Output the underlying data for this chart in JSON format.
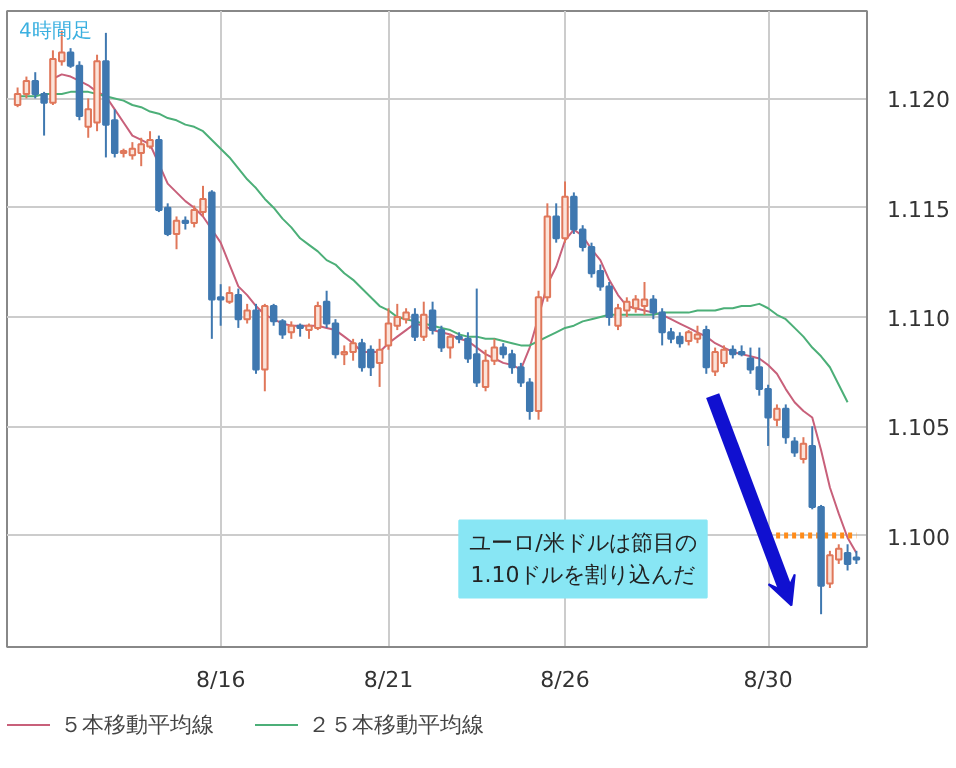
{
  "chart_data": {
    "type": "candlestick",
    "title": "4時間足",
    "annotations": [
      "ユーロ/米ドルは節目の\n1.10ドルを割り込んだ"
    ],
    "categories": [
      null,
      null,
      null,
      null,
      null,
      null,
      null,
      null,
      null,
      null,
      null,
      null,
      null,
      null,
      null,
      null,
      null,
      null,
      null,
      null,
      null,
      null,
      null,
      "8/16",
      null,
      null,
      null,
      null,
      null,
      null,
      null,
      null,
      null,
      null,
      null,
      null,
      null,
      null,
      null,
      null,
      null,
      null,
      "8/21",
      null,
      null,
      null,
      null,
      null,
      null,
      null,
      null,
      null,
      null,
      null,
      null,
      null,
      null,
      null,
      null,
      null,
      null,
      null,
      "8/26",
      null,
      null,
      null,
      null,
      null,
      null,
      null,
      null,
      null,
      null,
      null,
      null,
      null,
      null,
      null,
      null,
      null,
      null,
      null,
      null,
      null,
      null,
      "8/30",
      null,
      null,
      null,
      null,
      null,
      null,
      null,
      null,
      null,
      null
    ],
    "ohlc": [
      [
        1.1197,
        1.1205,
        1.1196,
        1.1202
      ],
      [
        1.1202,
        1.121,
        1.12,
        1.1208
      ],
      [
        1.1208,
        1.1212,
        1.12,
        1.1202
      ],
      [
        1.1202,
        1.1203,
        1.1183,
        1.1198
      ],
      [
        1.1198,
        1.1222,
        1.1197,
        1.1218
      ],
      [
        1.1217,
        1.1231,
        1.1215,
        1.1221
      ],
      [
        1.1221,
        1.1223,
        1.1214,
        1.1215
      ],
      [
        1.1215,
        1.1217,
        1.119,
        1.1192
      ],
      [
        1.1187,
        1.12,
        1.1182,
        1.1195
      ],
      [
        1.1189,
        1.122,
        1.1185,
        1.1217
      ],
      [
        1.1217,
        1.123,
        1.1173,
        1.1188
      ],
      [
        1.119,
        1.1195,
        1.1173,
        1.1175
      ],
      [
        1.1175,
        1.1177,
        1.1173,
        1.1176
      ],
      [
        1.1174,
        1.118,
        1.1172,
        1.1177
      ],
      [
        1.1175,
        1.1182,
        1.1169,
        1.1179
      ],
      [
        1.1178,
        1.1185,
        1.1177,
        1.1181
      ],
      [
        1.1181,
        1.1183,
        1.1148,
        1.1149
      ],
      [
        1.115,
        1.1152,
        1.1137,
        1.1138
      ],
      [
        1.1138,
        1.1146,
        1.1131,
        1.1144
      ],
      [
        1.1144,
        1.1146,
        1.114,
        1.1143
      ],
      [
        1.1143,
        1.1151,
        1.1141,
        1.1149
      ],
      [
        1.1148,
        1.116,
        1.1146,
        1.1154
      ],
      [
        1.1157,
        1.1158,
        1.109,
        1.1108
      ],
      [
        1.1109,
        1.1115,
        1.1096,
        1.1108
      ],
      [
        1.1107,
        1.1114,
        1.1106,
        1.1111
      ],
      [
        1.111,
        1.1113,
        1.1095,
        1.1099
      ],
      [
        1.1099,
        1.1106,
        1.1097,
        1.1103
      ],
      [
        1.1103,
        1.1106,
        1.1074,
        1.1076
      ],
      [
        1.1076,
        1.1106,
        1.1066,
        1.1105
      ],
      [
        1.1105,
        1.1106,
        1.1096,
        1.1098
      ],
      [
        1.1098,
        1.1099,
        1.109,
        1.1092
      ],
      [
        1.1093,
        1.1098,
        1.109,
        1.1096
      ],
      [
        1.1096,
        1.1097,
        1.1091,
        1.1095
      ],
      [
        1.1094,
        1.1097,
        1.109,
        1.1096
      ],
      [
        1.1095,
        1.1107,
        1.1094,
        1.1105
      ],
      [
        1.1107,
        1.1112,
        1.1095,
        1.1097
      ],
      [
        1.1097,
        1.1099,
        1.1081,
        1.1083
      ],
      [
        1.1083,
        1.1087,
        1.1078,
        1.1084
      ],
      [
        1.1084,
        1.109,
        1.108,
        1.1088
      ],
      [
        1.1088,
        1.109,
        1.1075,
        1.1077
      ],
      [
        1.1085,
        1.1087,
        1.1073,
        1.1077
      ],
      [
        1.1079,
        1.109,
        1.1068,
        1.1085
      ],
      [
        1.1087,
        1.1104,
        1.1085,
        1.1097
      ],
      [
        1.1096,
        1.1106,
        1.1094,
        1.11
      ],
      [
        1.1099,
        1.1104,
        1.1097,
        1.1102
      ],
      [
        1.1101,
        1.1104,
        1.1089,
        1.1091
      ],
      [
        1.1091,
        1.1107,
        1.1089,
        1.1101
      ],
      [
        1.1103,
        1.1107,
        1.1092,
        1.1094
      ],
      [
        1.1094,
        1.1096,
        1.1084,
        1.1086
      ],
      [
        1.1086,
        1.1092,
        1.1081,
        1.1091
      ],
      [
        1.1091,
        1.1093,
        1.1088,
        1.109
      ],
      [
        1.109,
        1.1093,
        1.1079,
        1.1081
      ],
      [
        1.1083,
        1.1113,
        1.1068,
        1.107
      ],
      [
        1.1068,
        1.1085,
        1.1066,
        1.108
      ],
      [
        1.108,
        1.109,
        1.1078,
        1.1086
      ],
      [
        1.1086,
        1.1088,
        1.1081,
        1.1083
      ],
      [
        1.1083,
        1.1085,
        1.1074,
        1.1077
      ],
      [
        1.1077,
        1.1079,
        1.1068,
        1.107
      ],
      [
        1.107,
        1.1072,
        1.1053,
        1.1057
      ],
      [
        1.1057,
        1.1112,
        1.1053,
        1.1109
      ],
      [
        1.1109,
        1.1152,
        1.1107,
        1.1146
      ],
      [
        1.1146,
        1.1152,
        1.1134,
        1.1136
      ],
      [
        1.1136,
        1.1162,
        1.1134,
        1.1155
      ],
      [
        1.1155,
        1.1157,
        1.1138,
        1.114
      ],
      [
        1.114,
        1.1142,
        1.113,
        1.1132
      ],
      [
        1.1132,
        1.1134,
        1.1118,
        1.112
      ],
      [
        1.1121,
        1.1124,
        1.1112,
        1.1114
      ],
      [
        1.1114,
        1.1116,
        1.1096,
        1.11
      ],
      [
        1.1096,
        1.1106,
        1.1094,
        1.1104
      ],
      [
        1.1103,
        1.1109,
        1.11,
        1.1107
      ],
      [
        1.1104,
        1.111,
        1.1102,
        1.1108
      ],
      [
        1.1105,
        1.1116,
        1.1101,
        1.1108
      ],
      [
        1.1108,
        1.111,
        1.1099,
        1.1102
      ],
      [
        1.1102,
        1.1104,
        1.1087,
        1.1093
      ],
      [
        1.1093,
        1.1095,
        1.1088,
        1.109
      ],
      [
        1.1091,
        1.1093,
        1.1086,
        1.1088
      ],
      [
        1.1089,
        1.1094,
        1.1087,
        1.1093
      ],
      [
        1.109,
        1.1096,
        1.1088,
        1.1092
      ],
      [
        1.1094,
        1.1096,
        1.1074,
        1.1077
      ],
      [
        1.1075,
        1.1086,
        1.1073,
        1.1084
      ],
      [
        1.1079,
        1.1087,
        1.1077,
        1.1085
      ],
      [
        1.1085,
        1.1087,
        1.1081,
        1.1083
      ],
      [
        1.1084,
        1.1087,
        1.1082,
        1.1083
      ],
      [
        1.1081,
        1.1086,
        1.1074,
        1.1076
      ],
      [
        1.1077,
        1.1086,
        1.1064,
        1.1067
      ],
      [
        1.1067,
        1.1069,
        1.1041,
        1.1054
      ],
      [
        1.1053,
        1.106,
        1.105,
        1.1058
      ],
      [
        1.1058,
        1.106,
        1.1042,
        1.1045
      ],
      [
        1.1043,
        1.1045,
        1.1036,
        1.1038
      ],
      [
        1.1035,
        1.1045,
        1.1033,
        1.1042
      ],
      [
        1.1041,
        1.105,
        1.1012,
        1.1013
      ],
      [
        1.1013,
        1.1014,
        1.0964,
        1.0977
      ],
      [
        1.0978,
        1.0993,
        1.0976,
        1.0991
      ],
      [
        1.0989,
        1.0996,
        1.0987,
        1.0994
      ],
      [
        1.0992,
        1.0996,
        1.0984,
        1.0987
      ],
      [
        1.099,
        1.0993,
        1.0987,
        1.0989
      ]
    ],
    "series": [
      {
        "name": "５本移動平均線",
        "type": "line",
        "color": "#c8607a",
        "values": [
          null,
          null,
          null,
          null,
          1.1209,
          1.1211,
          1.121,
          1.1208,
          1.1206,
          1.1203,
          1.1201,
          1.1195,
          1.1189,
          1.1183,
          1.1181,
          1.1179,
          1.117,
          1.1161,
          1.1157,
          1.1153,
          1.115,
          1.1146,
          1.114,
          1.1134,
          1.1124,
          1.1114,
          1.111,
          1.1105,
          1.1101,
          1.1099,
          1.1097,
          1.1096,
          1.1096,
          1.1096,
          1.1096,
          1.1095,
          1.1094,
          1.1091,
          1.1088,
          1.1084,
          1.1084,
          1.1084,
          1.1088,
          1.1091,
          1.1094,
          1.1097,
          1.1096,
          1.1094,
          1.1093,
          1.1092,
          1.109,
          1.1089,
          1.1086,
          1.1083,
          1.1081,
          1.1079,
          1.1078,
          1.1076,
          1.1086,
          1.11,
          1.1115,
          1.1123,
          1.1135,
          1.114,
          1.1137,
          1.1131,
          1.1126,
          1.1117,
          1.111,
          1.1105,
          1.1104,
          1.1103,
          1.1102,
          1.1101,
          1.1099,
          1.1097,
          1.1095,
          1.1093,
          1.1091,
          1.1088,
          1.1086,
          1.1084,
          1.1083,
          1.1082,
          1.1081,
          1.1078,
          1.1074,
          1.1067,
          1.1061,
          1.1057,
          1.1054,
          1.1039,
          1.1022,
          1.101,
          1.0999,
          1.0992
        ]
      },
      {
        "name": "２５本移動平均線",
        "type": "line",
        "color": "#4caf78",
        "values": [
          1.1201,
          1.1201,
          1.1201,
          1.1202,
          1.1202,
          1.1202,
          1.1203,
          1.1203,
          1.1203,
          1.1202,
          1.1201,
          1.12,
          1.1199,
          1.1197,
          1.1196,
          1.1194,
          1.1193,
          1.1191,
          1.119,
          1.1188,
          1.1187,
          1.1185,
          1.1181,
          1.1177,
          1.1173,
          1.1168,
          1.1163,
          1.1159,
          1.1154,
          1.115,
          1.1145,
          1.1141,
          1.1136,
          1.1133,
          1.113,
          1.1126,
          1.1124,
          1.112,
          1.1117,
          1.1113,
          1.1109,
          1.1105,
          1.1103,
          1.11,
          1.1099,
          1.1098,
          1.1097,
          1.1096,
          1.1095,
          1.1094,
          1.1092,
          1.1091,
          1.1091,
          1.109,
          1.109,
          1.1089,
          1.1088,
          1.1087,
          1.1087,
          1.1089,
          1.1091,
          1.1093,
          1.1095,
          1.1096,
          1.1098,
          1.1099,
          1.11,
          1.1101,
          1.1101,
          1.1101,
          1.1101,
          1.1101,
          1.1101,
          1.1102,
          1.1102,
          1.1102,
          1.1102,
          1.1103,
          1.1103,
          1.1103,
          1.1104,
          1.1104,
          1.1105,
          1.1105,
          1.1106,
          1.1104,
          1.1101,
          1.1099,
          1.1095,
          1.1091,
          1.1086,
          1.1082,
          1.1077,
          1.1069,
          1.1061,
          null
        ]
      },
      {
        "type": "line",
        "color": "#ff8c1a",
        "line_style": "dotted",
        "values": [
          null,
          null,
          null,
          null,
          null,
          null,
          null,
          null,
          null,
          null,
          null,
          null,
          null,
          null,
          null,
          null,
          null,
          null,
          null,
          null,
          null,
          null,
          null,
          null,
          null,
          null,
          null,
          null,
          null,
          null,
          null,
          null,
          null,
          null,
          null,
          null,
          null,
          null,
          null,
          null,
          null,
          null,
          null,
          null,
          null,
          null,
          null,
          null,
          null,
          null,
          null,
          null,
          null,
          null,
          null,
          null,
          null,
          null,
          null,
          null,
          null,
          null,
          null,
          null,
          null,
          null,
          null,
          null,
          null,
          null,
          null,
          null,
          null,
          null,
          null,
          null,
          null,
          null,
          null,
          null,
          null,
          null,
          null,
          null,
          null,
          1.1,
          1.1,
          1.1,
          1.1,
          1.1,
          1.1,
          1.1,
          1.1,
          1.1,
          1.1,
          1.1
        ]
      }
    ],
    "ylim": [
      1.0949,
      1.124
    ],
    "yticks": [
      {
        "value": 1.1,
        "label": "1.100"
      },
      {
        "value": 1.105,
        "label": "1.105"
      },
      {
        "value": 1.11,
        "label": "1.110"
      },
      {
        "value": 1.115,
        "label": "1.115"
      },
      {
        "value": 1.12,
        "label": "1.120"
      }
    ],
    "grid": true,
    "legend": "bottom"
  }
}
